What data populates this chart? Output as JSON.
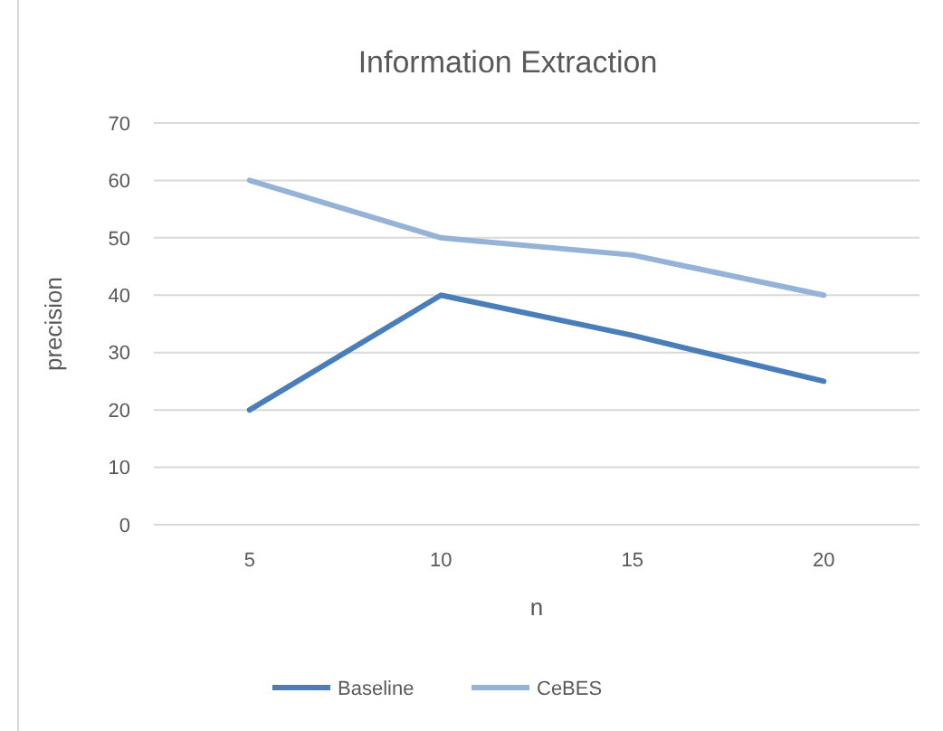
{
  "chart_data": {
    "type": "line",
    "title": "Information Extraction",
    "xlabel": "n",
    "ylabel": "precision",
    "categories": [
      "5",
      "10",
      "15",
      "20"
    ],
    "series": [
      {
        "name": "Baseline",
        "color": "#4a7ebb",
        "values": [
          20,
          40,
          33,
          25
        ]
      },
      {
        "name": "CeBES",
        "color": "#95b3d7",
        "values": [
          60,
          50,
          47,
          40
        ]
      }
    ],
    "ylim": [
      0,
      70
    ],
    "yticks": [
      0,
      10,
      20,
      30,
      40,
      50,
      60,
      70
    ],
    "grid": "y",
    "legend": "bottom",
    "marker": "none",
    "line_style": "solid"
  }
}
